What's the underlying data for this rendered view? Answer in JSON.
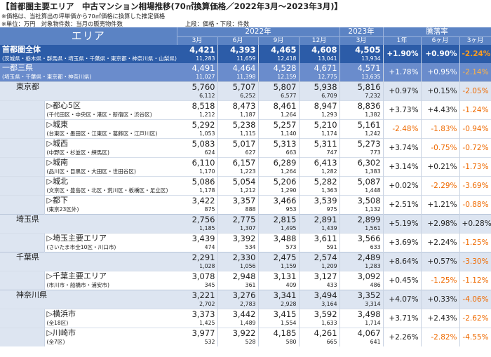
{
  "title": "【首都圏主要エリア　中古マンション相場推移(70㎡換算価格／2022年3月～2023年3月)】",
  "notes": [
    "※価格は、当社算出の坪単価から70㎡価格に換算した推定価格",
    "※単位：万円　対象物件数：当月の販売物件数"
  ],
  "legend_note": "上段：価格・下段：件数",
  "header": {
    "area": "エリア",
    "year2022": "2022年",
    "year2023": "2023年",
    "change": "騰落率",
    "months": [
      "3月",
      "6月",
      "9月",
      "12月",
      "3月"
    ],
    "periods": [
      "1年",
      "6ヶ月",
      "3ヶ月"
    ]
  },
  "rows": [
    {
      "name": "首都圏全体",
      "sub": "(茨城県・栃木県・群馬県・埼玉県・千葉県・東京都・神奈川県・山梨県)",
      "kind": "top",
      "prices": [
        "4,421",
        "4,393",
        "4,465",
        "4,608",
        "4,505"
      ],
      "counts": [
        "11,283",
        "11,659",
        "12,418",
        "13,041",
        "13,934"
      ],
      "changes": [
        {
          "v": "+1.90%",
          "neg": false
        },
        {
          "v": "+0.90%",
          "neg": false
        },
        {
          "v": "-2.24%",
          "neg": true
        }
      ]
    },
    {
      "name": "一都三県",
      "sub": "(埼玉県・千葉県・東京都・神奈川県)",
      "kind": "tokyo",
      "prices": [
        "4,491",
        "4,464",
        "4,528",
        "4,671",
        "4,571"
      ],
      "counts": [
        "11,027",
        "11,398",
        "12,159",
        "12,775",
        "13,635"
      ],
      "changes": [
        {
          "v": "+1.78%",
          "neg": false
        },
        {
          "v": "+0.95%",
          "neg": false
        },
        {
          "v": "-2.14%",
          "neg": true
        }
      ]
    },
    {
      "name": "東京都",
      "sub": "",
      "kind": "pref",
      "prices": [
        "5,760",
        "5,707",
        "5,807",
        "5,938",
        "5,816"
      ],
      "counts": [
        "6,112",
        "6,252",
        "6,577",
        "6,709",
        "7,232"
      ],
      "changes": [
        {
          "v": "+0.97%",
          "neg": false
        },
        {
          "v": "+0.15%",
          "neg": false
        },
        {
          "v": "-2.05%",
          "neg": true
        }
      ]
    },
    {
      "name": "▷都心5区",
      "sub": "(千代田区・中央区・港区・新宿区・渋谷区)",
      "kind": "sub",
      "prices": [
        "8,518",
        "8,473",
        "8,461",
        "8,947",
        "8,836"
      ],
      "counts": [
        "1,212",
        "1,187",
        "1,264",
        "1,293",
        "1,382"
      ],
      "changes": [
        {
          "v": "+3.73%",
          "neg": false
        },
        {
          "v": "+4.43%",
          "neg": false
        },
        {
          "v": "-1.24%",
          "neg": true
        }
      ]
    },
    {
      "name": "▷城東",
      "sub": "(台東区・墨田区・江東区・葛飾区・江戸川区)",
      "kind": "sub",
      "prices": [
        "5,292",
        "5,238",
        "5,257",
        "5,210",
        "5,161"
      ],
      "counts": [
        "1,053",
        "1,115",
        "1,140",
        "1,174",
        "1,242"
      ],
      "changes": [
        {
          "v": "-2.48%",
          "neg": true
        },
        {
          "v": "-1.83%",
          "neg": true
        },
        {
          "v": "-0.94%",
          "neg": true
        }
      ]
    },
    {
      "name": "▷城西",
      "sub": "(中野区・杉並区・練馬区)",
      "kind": "sub",
      "prices": [
        "5,083",
        "5,017",
        "5,313",
        "5,311",
        "5,273"
      ],
      "counts": [
        "624",
        "627",
        "663",
        "747",
        "773"
      ],
      "changes": [
        {
          "v": "+3.74%",
          "neg": false
        },
        {
          "v": "-0.75%",
          "neg": true
        },
        {
          "v": "-0.72%",
          "neg": true
        }
      ]
    },
    {
      "name": "▷城南",
      "sub": "(品川区・目黒区・大田区・世田谷区)",
      "kind": "sub",
      "prices": [
        "6,110",
        "6,157",
        "6,289",
        "6,413",
        "6,302"
      ],
      "counts": [
        "1,170",
        "1,223",
        "1,264",
        "1,282",
        "1,383"
      ],
      "changes": [
        {
          "v": "+3.14%",
          "neg": false
        },
        {
          "v": "+0.21%",
          "neg": false
        },
        {
          "v": "-1.73%",
          "neg": true
        }
      ]
    },
    {
      "name": "▷城北",
      "sub": "(文京区・豊島区・北区・荒川区・板橋区・足立区)",
      "kind": "sub",
      "prices": [
        "5,086",
        "5,054",
        "5,206",
        "5,282",
        "5,087"
      ],
      "counts": [
        "1,178",
        "1,212",
        "1,290",
        "1,363",
        "1,448"
      ],
      "changes": [
        {
          "v": "+0.02%",
          "neg": false
        },
        {
          "v": "-2.29%",
          "neg": true
        },
        {
          "v": "-3.69%",
          "neg": true
        }
      ]
    },
    {
      "name": "▷都下",
      "sub": "(東京23区外)",
      "kind": "sub",
      "prices": [
        "3,422",
        "3,357",
        "3,466",
        "3,539",
        "3,508"
      ],
      "counts": [
        "875",
        "888",
        "953",
        "975",
        "1,132"
      ],
      "changes": [
        {
          "v": "+2.51%",
          "neg": false
        },
        {
          "v": "+1.21%",
          "neg": false
        },
        {
          "v": "-0.88%",
          "neg": true
        }
      ]
    },
    {
      "name": "埼玉県",
      "sub": "",
      "kind": "pref",
      "prices": [
        "2,756",
        "2,775",
        "2,815",
        "2,891",
        "2,899"
      ],
      "counts": [
        "1,185",
        "1,307",
        "1,495",
        "1,439",
        "1,561"
      ],
      "changes": [
        {
          "v": "+5.19%",
          "neg": false
        },
        {
          "v": "+2.98%",
          "neg": false
        },
        {
          "v": "+0.28%",
          "neg": false
        }
      ]
    },
    {
      "name": "▷埼玉主要エリア",
      "sub": "(さいたま市全10区・川口市)",
      "kind": "sub",
      "prices": [
        "3,439",
        "3,392",
        "3,488",
        "3,611",
        "3,566"
      ],
      "counts": [
        "474",
        "534",
        "573",
        "591",
        "633"
      ],
      "changes": [
        {
          "v": "+3.69%",
          "neg": false
        },
        {
          "v": "+2.24%",
          "neg": false
        },
        {
          "v": "-1.25%",
          "neg": true
        }
      ]
    },
    {
      "name": "千葉県",
      "sub": "",
      "kind": "pref",
      "prices": [
        "2,291",
        "2,330",
        "2,475",
        "2,574",
        "2,489"
      ],
      "counts": [
        "1,028",
        "1,056",
        "1,159",
        "1,209",
        "1,283"
      ],
      "changes": [
        {
          "v": "+8.64%",
          "neg": false
        },
        {
          "v": "+0.57%",
          "neg": false
        },
        {
          "v": "-3.30%",
          "neg": true
        }
      ]
    },
    {
      "name": "▷千葉主要エリア",
      "sub": "(市川市・船橋市・浦安市)",
      "kind": "sub",
      "prices": [
        "3,078",
        "2,948",
        "3,131",
        "3,127",
        "3,092"
      ],
      "counts": [
        "345",
        "361",
        "409",
        "433",
        "486"
      ],
      "changes": [
        {
          "v": "+0.45%",
          "neg": false
        },
        {
          "v": "-1.25%",
          "neg": true
        },
        {
          "v": "-1.12%",
          "neg": true
        }
      ]
    },
    {
      "name": "神奈川県",
      "sub": "",
      "kind": "pref",
      "prices": [
        "3,221",
        "3,276",
        "3,341",
        "3,494",
        "3,352"
      ],
      "counts": [
        "2,702",
        "2,783",
        "2,928",
        "3,164",
        "3,314"
      ],
      "changes": [
        {
          "v": "+4.07%",
          "neg": false
        },
        {
          "v": "+0.33%",
          "neg": false
        },
        {
          "v": "-4.06%",
          "neg": true
        }
      ]
    },
    {
      "name": "▷横浜市",
      "sub": "(全18区)",
      "kind": "sub",
      "prices": [
        "3,373",
        "3,442",
        "3,415",
        "3,592",
        "3,498"
      ],
      "counts": [
        "1,425",
        "1,489",
        "1,554",
        "1,633",
        "1,714"
      ],
      "changes": [
        {
          "v": "+3.71%",
          "neg": false
        },
        {
          "v": "+2.43%",
          "neg": false
        },
        {
          "v": "-2.62%",
          "neg": true
        }
      ]
    },
    {
      "name": "▷川崎市",
      "sub": "(全7区)",
      "kind": "sub",
      "prices": [
        "3,977",
        "3,922",
        "4,185",
        "4,261",
        "4,067"
      ],
      "counts": [
        "532",
        "528",
        "580",
        "665",
        "641"
      ],
      "changes": [
        {
          "v": "+2.26%",
          "neg": false
        },
        {
          "v": "-2.82%",
          "neg": true
        },
        {
          "v": "-4.55%",
          "neg": true
        }
      ]
    }
  ]
}
